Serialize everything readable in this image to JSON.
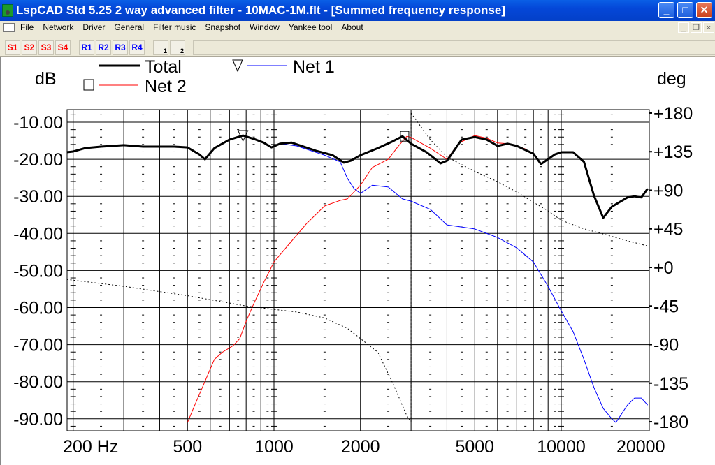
{
  "window": {
    "title": "LspCAD Std 5.25 2 way advanced filter - 10MAC-1M.flt - [Summed frequency response]",
    "minimize": "_",
    "maximize": "□",
    "close": "✕"
  },
  "menu": [
    "File",
    "Network",
    "Driver",
    "General",
    "Filter music",
    "Snapshot",
    "Window",
    "Yankee tool",
    "About"
  ],
  "mdi": {
    "minimize": "_",
    "restore": "❐",
    "close": "×"
  },
  "toolbar": {
    "s": [
      "S1",
      "S2",
      "S3",
      "S4"
    ],
    "r": [
      "R1",
      "R2",
      "R3",
      "R4"
    ],
    "net_buttons": [
      "1",
      "2"
    ],
    "colors": {
      "s": "#ff0000",
      "r": "#0000ff"
    }
  },
  "chart_data": {
    "type": "line",
    "ylabel": "dB",
    "y2label": "deg",
    "xscale": "log",
    "xlim": [
      190,
      20000
    ],
    "ylim": [
      -93.2,
      -6.6
    ],
    "y2lim": [
      -180,
      180
    ],
    "xticks": [
      {
        "v": 200,
        "label": "200 Hz"
      },
      {
        "v": 500,
        "label": "500"
      },
      {
        "v": 1000,
        "label": "1000"
      },
      {
        "v": 2000,
        "label": "2000"
      },
      {
        "v": 5000,
        "label": "5000"
      },
      {
        "v": 10000,
        "label": "10000"
      },
      {
        "v": 20000,
        "label": "20000"
      }
    ],
    "yticks": [
      {
        "v": -10,
        "label": "-10.00"
      },
      {
        "v": -20,
        "label": "-20.00"
      },
      {
        "v": -30,
        "label": "-30.00"
      },
      {
        "v": -40,
        "label": "-40.00"
      },
      {
        "v": -50,
        "label": "-50.00"
      },
      {
        "v": -60,
        "label": "-60.00"
      },
      {
        "v": -70,
        "label": "-70.00"
      },
      {
        "v": -80,
        "label": "-80.00"
      },
      {
        "v": -90,
        "label": "-90.00"
      }
    ],
    "y2ticks": [
      {
        "v": 180,
        "label": "+180"
      },
      {
        "v": 135,
        "label": "+135"
      },
      {
        "v": 90,
        "label": "+90"
      },
      {
        "v": 45,
        "label": "+45"
      },
      {
        "v": 0,
        "label": "+0"
      },
      {
        "v": -45,
        "label": "-45"
      },
      {
        "v": -90,
        "label": "-90"
      },
      {
        "v": -135,
        "label": "-135"
      },
      {
        "v": -180,
        "label": "-180"
      }
    ],
    "legend": [
      {
        "name": "Total",
        "color": "#000000",
        "marker": "none"
      },
      {
        "name": "Net 1",
        "color": "#0000ff",
        "marker": "triangle"
      },
      {
        "name": "Net 2",
        "color": "#ff0000",
        "marker": "square"
      }
    ],
    "series": [
      {
        "name": "Net 2",
        "color": "#ff0000",
        "width": 1,
        "points": [
          [
            500,
            -91
          ],
          [
            530,
            -86.3
          ],
          [
            570,
            -80.6
          ],
          [
            620,
            -74
          ],
          [
            660,
            -72.1
          ],
          [
            720,
            -70.3
          ],
          [
            760,
            -68.4
          ],
          [
            800,
            -63.7
          ],
          [
            850,
            -59
          ],
          [
            920,
            -53.3
          ],
          [
            1000,
            -47.7
          ],
          [
            1100,
            -43.9
          ],
          [
            1300,
            -37.3
          ],
          [
            1500,
            -32.6
          ],
          [
            1700,
            -31.1
          ],
          [
            1800,
            -30.7
          ],
          [
            2000,
            -27
          ],
          [
            2200,
            -22.2
          ],
          [
            2500,
            -20
          ],
          [
            2700,
            -16.6
          ],
          [
            2900,
            -13.8
          ],
          [
            3000,
            -14.1
          ],
          [
            3500,
            -17
          ],
          [
            4000,
            -20
          ],
          [
            4400,
            -15.6
          ],
          [
            5000,
            -13.6
          ],
          [
            5500,
            -14.3
          ],
          [
            6000,
            -15.6
          ],
          [
            6500,
            -15.8
          ],
          [
            7000,
            -16.4
          ],
          [
            7500,
            -17.2
          ]
        ]
      },
      {
        "name": "Net 1",
        "color": "#0000ff",
        "width": 1,
        "points": [
          [
            1050,
            -15.8
          ],
          [
            1200,
            -16.4
          ],
          [
            1500,
            -18.9
          ],
          [
            1700,
            -20.7
          ],
          [
            1800,
            -25.1
          ],
          [
            1900,
            -27.9
          ],
          [
            2000,
            -29.2
          ],
          [
            2200,
            -27
          ],
          [
            2500,
            -27.5
          ],
          [
            2800,
            -30.7
          ],
          [
            3000,
            -31.3
          ],
          [
            3500,
            -33.5
          ],
          [
            4000,
            -37.7
          ],
          [
            5000,
            -38.8
          ],
          [
            6000,
            -41.1
          ],
          [
            7000,
            -43.9
          ],
          [
            8000,
            -47.7
          ],
          [
            9000,
            -54.3
          ],
          [
            10000,
            -60.9
          ],
          [
            11000,
            -66.5
          ],
          [
            12000,
            -74
          ],
          [
            13000,
            -81.6
          ],
          [
            14000,
            -87.2
          ],
          [
            15000,
            -90
          ],
          [
            15500,
            -91
          ],
          [
            17000,
            -86.3
          ],
          [
            18000,
            -84.4
          ],
          [
            19000,
            -84.4
          ],
          [
            20000,
            -86.3
          ]
        ]
      },
      {
        "name": "Total",
        "color": "#000000",
        "width": 3,
        "points": [
          [
            190,
            -18.1
          ],
          [
            200,
            -17.9
          ],
          [
            220,
            -17
          ],
          [
            250,
            -16.6
          ],
          [
            300,
            -16.2
          ],
          [
            350,
            -16.6
          ],
          [
            400,
            -16.6
          ],
          [
            450,
            -16.6
          ],
          [
            500,
            -16.8
          ],
          [
            550,
            -18.7
          ],
          [
            575,
            -20
          ],
          [
            620,
            -17
          ],
          [
            700,
            -14.7
          ],
          [
            780,
            -13.6
          ],
          [
            850,
            -14.5
          ],
          [
            920,
            -15.5
          ],
          [
            980,
            -16.8
          ],
          [
            1050,
            -15.8
          ],
          [
            1150,
            -15.5
          ],
          [
            1400,
            -17.7
          ],
          [
            1600,
            -18.9
          ],
          [
            1750,
            -20.9
          ],
          [
            1850,
            -20.4
          ],
          [
            2000,
            -18.9
          ],
          [
            2300,
            -17
          ],
          [
            2600,
            -15.1
          ],
          [
            2800,
            -13.8
          ],
          [
            3000,
            -15.8
          ],
          [
            3400,
            -18.1
          ],
          [
            3800,
            -21.1
          ],
          [
            4000,
            -20.4
          ],
          [
            4500,
            -14.7
          ],
          [
            5000,
            -14
          ],
          [
            5500,
            -14.7
          ],
          [
            6000,
            -16.4
          ],
          [
            6500,
            -15.8
          ],
          [
            7000,
            -16.4
          ],
          [
            8000,
            -18.5
          ],
          [
            8500,
            -21.3
          ],
          [
            9500,
            -18.7
          ],
          [
            10000,
            -18.1
          ],
          [
            11000,
            -18.1
          ],
          [
            12000,
            -20.7
          ],
          [
            13000,
            -29.8
          ],
          [
            14000,
            -35.8
          ],
          [
            15000,
            -32.8
          ],
          [
            17000,
            -30.3
          ],
          [
            18000,
            -30
          ],
          [
            19000,
            -30.3
          ],
          [
            20000,
            -27.9
          ]
        ]
      }
    ],
    "phase": {
      "name": "Phase",
      "axis": "deg",
      "segments": [
        [
          [
            190,
            -14
          ],
          [
            300,
            -22
          ],
          [
            500,
            -33
          ],
          [
            800,
            -45
          ],
          [
            1000,
            -49
          ],
          [
            1200,
            -52
          ],
          [
            1500,
            -59
          ],
          [
            1800,
            -71
          ],
          [
            2000,
            -83
          ],
          [
            2300,
            -99
          ],
          [
            2600,
            -136
          ],
          [
            2900,
            -173
          ],
          [
            3000,
            -180
          ]
        ],
        [
          [
            3000,
            180
          ],
          [
            3500,
            149
          ],
          [
            4000,
            129
          ],
          [
            5000,
            112
          ],
          [
            6000,
            100
          ],
          [
            7000,
            88
          ],
          [
            8000,
            76
          ],
          [
            9000,
            66
          ],
          [
            10000,
            55
          ],
          [
            12000,
            45
          ],
          [
            14000,
            39
          ],
          [
            17000,
            31
          ],
          [
            20000,
            25
          ]
        ]
      ]
    },
    "markers": [
      {
        "series": "Net 1",
        "shape": "triangle",
        "x": 780,
        "y": -13.4
      },
      {
        "series": "Net 2",
        "shape": "square",
        "x": 2850,
        "y": -13.8
      }
    ]
  }
}
